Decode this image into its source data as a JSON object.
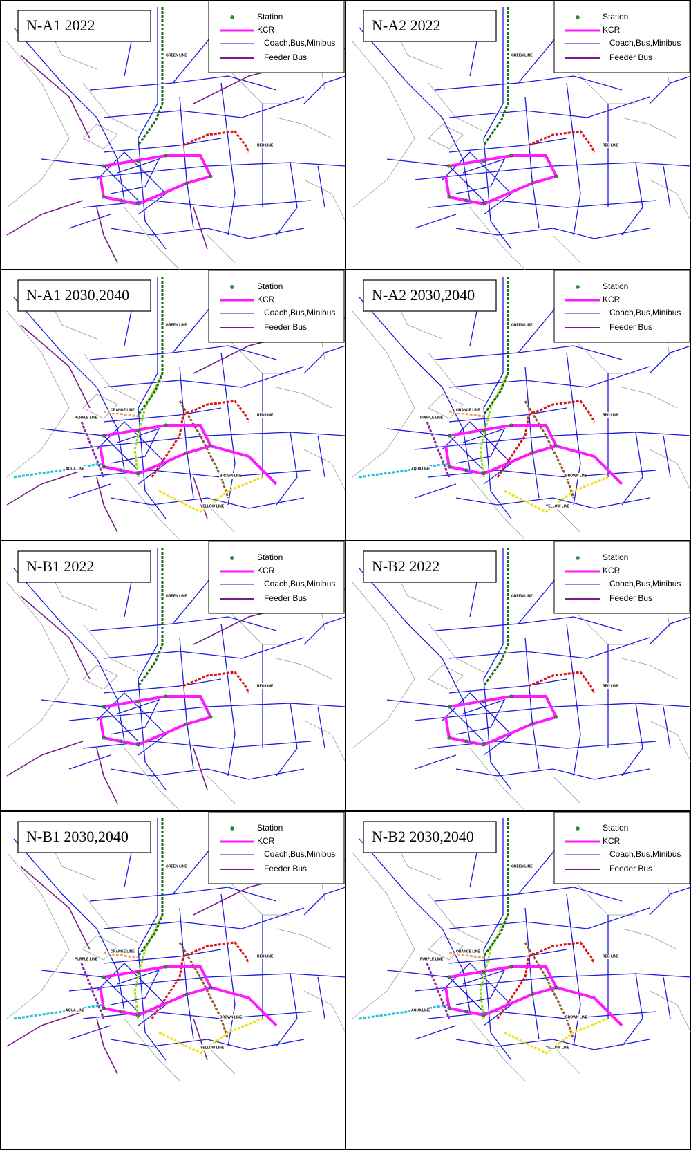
{
  "legend": [
    "Station",
    "KCR",
    "Coach,Bus,Minibus",
    "Feeder Bus"
  ],
  "panels": [
    {
      "title": "N-A1 2022",
      "line_labels": [
        "GREEN LINE",
        "RED LINE"
      ]
    },
    {
      "title": "N-A2 2022",
      "line_labels": [
        "GREEN LINE",
        "RED LINE"
      ]
    },
    {
      "title": "N-A1 2030,2040",
      "line_labels": [
        "GREEN LINE",
        "RED LINE",
        "ORANGE LINE",
        "PURPLE LINE",
        "AQUA LINE",
        "BROWN LINE",
        "YELLOW LINE"
      ]
    },
    {
      "title": "N-A2 2030,2040",
      "line_labels": [
        "GREEN LINE",
        "RED LINE",
        "ORANGE LINE",
        "PURPLE LINE",
        "AQUA LINE",
        "BROWN LINE",
        "YELLOW LINE"
      ]
    },
    {
      "title": "N-B1 2022",
      "line_labels": [
        "GREEN LINE",
        "RED LINE"
      ]
    },
    {
      "title": "N-B2 2022",
      "line_labels": [
        "GREEN LINE",
        "RED LINE"
      ]
    },
    {
      "title": "N-B1 2030,2040",
      "line_labels": [
        "GREEN LINE",
        "RED LINE",
        "ORANGE LINE",
        "PURPLE LINE",
        "AQUA LINE",
        "BROWN LINE",
        "YELLOW LINE"
      ]
    },
    {
      "title": "N-B2 2030,2040",
      "line_labels": [
        "GREEN LINE",
        "RED LINE",
        "ORANGE LINE",
        "PURPLE LINE",
        "AQUA LINE",
        "BROWN LINE",
        "YELLOW LINE"
      ]
    }
  ]
}
